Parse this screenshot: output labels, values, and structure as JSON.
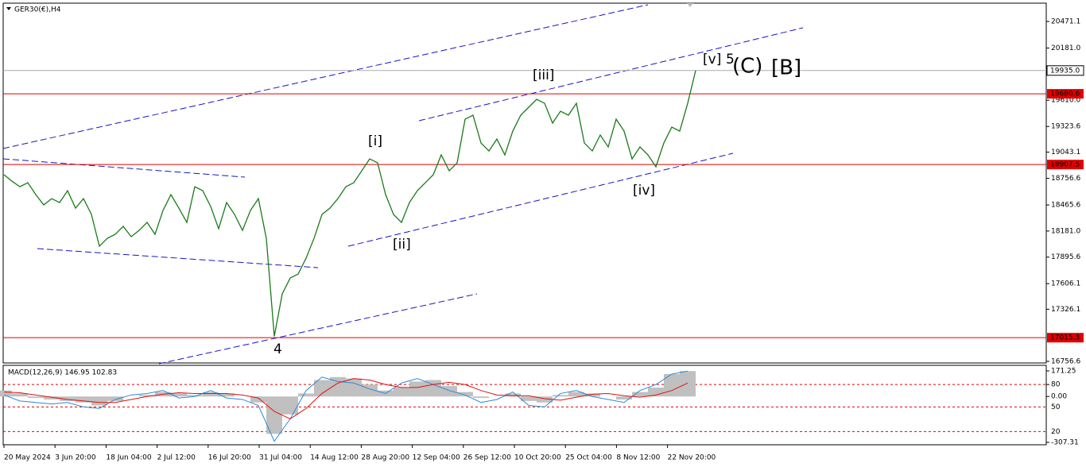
{
  "chart_data": [
    {
      "type": "line",
      "title": "GER30(€),H4",
      "color": "#1a7a1a",
      "x_labels": [
        "20 May 2024",
        "3 Jun 20:00",
        "18 Jun 04:00",
        "2 Jul 12:00",
        "16 Jul 20:00",
        "31 Jul 04:00",
        "14 Aug 12:00",
        "28 Aug 20:00",
        "12 Sep 04:00",
        "26 Sep 12:00",
        "10 Oct 20:00",
        "25 Oct 04:00",
        "8 Nov 12:00",
        "22 Nov 20:00"
      ],
      "values": [
        18796,
        18726,
        18665,
        18709,
        18579,
        18466,
        18535,
        18492,
        18622,
        18431,
        18535,
        18362,
        18015,
        18101,
        18145,
        18232,
        18119,
        18188,
        18275,
        18145,
        18405,
        18579,
        18431,
        18275,
        18665,
        18622,
        18449,
        18206,
        18492,
        18362,
        18188,
        18405,
        18535,
        18101,
        17030,
        17494,
        17667,
        17711,
        17884,
        18101,
        18362,
        18431,
        18535,
        18665,
        18709,
        18839,
        18969,
        18926,
        18579,
        18362,
        18275,
        18492,
        18622,
        18709,
        18796,
        19013,
        18839,
        18926,
        19403,
        19447,
        19143,
        19056,
        19186,
        19013,
        19273,
        19447,
        19534,
        19620,
        19577,
        19360,
        19490,
        19447,
        19577,
        19143,
        19056,
        19230,
        19100,
        19403,
        19273,
        18969,
        19100,
        19013,
        18883,
        19143,
        19317,
        19273,
        19577,
        19935
      ],
      "ylim": [
        16739,
        20671
      ],
      "yticks": [
        20471.1,
        {
          "value": 20181,
          "label": "20181.0"
        },
        {
          "value": 19610,
          "label": "19610.0"
        },
        19323.6,
        19043.1,
        18756.6,
        18465.6,
        {
          "value": 18181,
          "label": "18181.0"
        },
        17895.6,
        17606.1,
        17326.1,
        16756.6
      ],
      "current_price": {
        "value": 19935,
        "label": "19935.0"
      },
      "levels": [
        {
          "value": 19680.6,
          "label": "19680.6"
        },
        {
          "value": 18907.5,
          "label": "18907.5"
        },
        {
          "value": 17015.3,
          "label": "17015.3"
        }
      ],
      "level_color": "#e00000",
      "annotations": [
        {
          "text": "[i]",
          "color": "#1a7a1a"
        },
        {
          "text": "[ii]",
          "color": "#1a7a1a"
        },
        {
          "text": "[iii]",
          "color": "#1a7a1a"
        },
        {
          "text": "[iv]",
          "color": "#1a7a1a"
        },
        {
          "text": "[v]",
          "color": "#1a7a1a"
        },
        {
          "text": "5",
          "color": "#1515c8"
        },
        {
          "text": "(C)",
          "color": "#e01010"
        },
        {
          "text": "[B]",
          "color": "#000000"
        },
        {
          "text": "4",
          "color": "#1515c8"
        }
      ]
    },
    {
      "type": "macd",
      "title": "MACD(12,26,9) 146.95 102.83",
      "ylim": [
        -307.31,
        171.25
      ],
      "yticks": [
        171.25,
        80,
        {
          "value": 0,
          "label": "0.00"
        },
        -307.31
      ],
      "levels": [
        80,
        -70,
        -235
      ],
      "level_labels": [
        "50",
        "20"
      ],
      "level_color": "#e00000",
      "histogram": {
        "color": "#c0c0c0",
        "values": [
          40,
          20,
          -10,
          -20,
          -30,
          -40,
          -60,
          -30,
          0,
          10,
          30,
          20,
          10,
          30,
          20,
          0,
          -40,
          -250,
          -120,
          20,
          110,
          130,
          120,
          80,
          40,
          60,
          100,
          110,
          70,
          30,
          -10,
          0,
          20,
          -30,
          -40,
          10,
          30,
          20,
          0,
          -20,
          30,
          60,
          150,
          170
        ]
      },
      "signal": {
        "color": "#e01010",
        "values": [
          30,
          25,
          10,
          -5,
          -20,
          -30,
          -40,
          -40,
          -20,
          0,
          15,
          25,
          20,
          20,
          20,
          10,
          -10,
          -100,
          -150,
          -80,
          20,
          90,
          120,
          110,
          80,
          60,
          60,
          80,
          95,
          80,
          40,
          10,
          5,
          5,
          -15,
          -25,
          -5,
          15,
          20,
          5,
          -5,
          10,
          40,
          90
        ]
      },
      "main": {
        "color": "#2a8ad8",
        "values": [
          10,
          -30,
          -40,
          -50,
          -40,
          -70,
          -80,
          -20,
          10,
          20,
          40,
          -10,
          0,
          40,
          -10,
          -20,
          -60,
          -300,
          -150,
          40,
          130,
          100,
          90,
          50,
          20,
          90,
          120,
          80,
          40,
          10,
          -40,
          -20,
          30,
          -60,
          -70,
          20,
          40,
          0,
          -20,
          -40,
          40,
          80,
          150,
          170
        ]
      }
    }
  ]
}
